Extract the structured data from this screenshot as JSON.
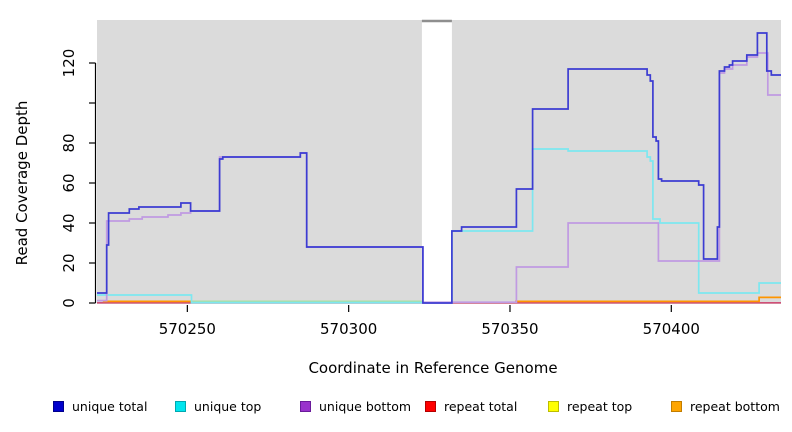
{
  "chart_data": {
    "type": "line",
    "subtype": "step-coverage",
    "title": "",
    "xlabel": "Coordinate in Reference Genome",
    "ylabel": "Read Coverage Depth",
    "xlim": [
      570222,
      570434
    ],
    "ylim": [
      0,
      141.5
    ],
    "grid": "off",
    "panel": {
      "background": "#dbdbdb",
      "gap_fill": "#ffffff",
      "gap_border": "#8f8f8f"
    },
    "gap_region": {
      "x_start": 570322.7,
      "x_end": 570332,
      "note": "white band, no coverage shown"
    },
    "x_ticks": [
      {
        "value": 570250,
        "label": "570250"
      },
      {
        "value": 570300,
        "label": "570300"
      },
      {
        "value": 570350,
        "label": "570350"
      },
      {
        "value": 570400,
        "label": "570400"
      }
    ],
    "y_ticks": [
      {
        "value": 0,
        "label": "0"
      },
      {
        "value": 20,
        "label": "20"
      },
      {
        "value": 40,
        "label": "40"
      },
      {
        "value": 60,
        "label": "60"
      },
      {
        "value": 80,
        "label": "80"
      },
      {
        "value": 100,
        "label": ""
      },
      {
        "value": 120,
        "label": "120"
      }
    ],
    "series": [
      {
        "name": "repeat total",
        "layer": "back",
        "legend_color": "#ff0000",
        "line_color": "#d04f77",
        "segments": [
          [
            [
              570222,
              0.1
            ],
            [
              570434,
              0.1
            ]
          ]
        ]
      },
      {
        "name": "repeat top",
        "layer": "back",
        "legend_color": "#ffff00",
        "line_color": "#a9dfa3",
        "segments": [
          [
            [
              570251.3,
              0.8
            ],
            [
              570322.7,
              0.8
            ]
          ]
        ]
      },
      {
        "name": "repeat bottom",
        "layer": "back",
        "legend_color": "#ffa500",
        "line_color": "#ff9500",
        "segments": [
          [
            [
              570223.8,
              0.8
            ],
            [
              570251.3,
              0.8
            ]
          ],
          [
            [
              570351.6,
              0.8
            ],
            [
              570427.2,
              2.8
            ],
            [
              570434,
              2.8
            ]
          ]
        ]
      },
      {
        "name": "unique top",
        "layer": "front",
        "legend_color": "#00e5ee",
        "line_color": "#7de7f0",
        "segments": [
          [
            [
              570222,
              4
            ],
            [
              570251.3,
              0.2
            ],
            [
              570332,
              36
            ],
            [
              570357,
              77
            ],
            [
              570368,
              76
            ],
            [
              570392.5,
              73
            ],
            [
              570393.5,
              71
            ],
            [
              570394.3,
              42
            ],
            [
              570396.5,
              40
            ],
            [
              570408.5,
              5
            ],
            [
              570427.2,
              10
            ],
            [
              570434,
              10
            ]
          ]
        ]
      },
      {
        "name": "unique bottom",
        "layer": "front",
        "legend_color": "#9932cc",
        "line_color": "#c09ae2",
        "segments": [
          [
            [
              570222,
              1.2
            ],
            [
              570225,
              41
            ],
            [
              570232,
              42
            ],
            [
              570236,
              43
            ],
            [
              570244,
              44
            ],
            [
              570248,
              45
            ],
            [
              570251,
              46
            ],
            [
              570260,
              73
            ],
            [
              570285,
              75
            ],
            [
              570287,
              28
            ],
            [
              570323,
              0.4
            ],
            [
              570352,
              18
            ],
            [
              570368,
              40
            ],
            [
              570396,
              21
            ],
            [
              570414.9,
              115
            ],
            [
              570416.5,
              117
            ],
            [
              570419,
              119
            ],
            [
              570423.4,
              123
            ],
            [
              570426.7,
              125
            ],
            [
              570429.9,
              104
            ],
            [
              570434,
              104
            ]
          ]
        ]
      },
      {
        "name": "unique total",
        "layer": "front",
        "legend_color": "#0000cc",
        "line_color": "#3c3cd2",
        "segments": [
          [
            [
              570222,
              5
            ],
            [
              570225,
              29
            ],
            [
              570225.6,
              45
            ],
            [
              570232,
              47
            ],
            [
              570235,
              48
            ],
            [
              570248,
              50
            ],
            [
              570251,
              46
            ],
            [
              570260,
              72
            ],
            [
              570261,
              73
            ],
            [
              570285,
              75
            ],
            [
              570287,
              28
            ],
            [
              570323,
              0
            ],
            [
              570332,
              36
            ],
            [
              570335,
              38
            ],
            [
              570352,
              57
            ],
            [
              570357,
              97
            ],
            [
              570368,
              117
            ],
            [
              570392.5,
              114
            ],
            [
              570393.5,
              111
            ],
            [
              570394.3,
              83
            ],
            [
              570395.3,
              81
            ],
            [
              570396,
              62
            ],
            [
              570397,
              61
            ],
            [
              570408.5,
              59
            ],
            [
              570410,
              22
            ],
            [
              570414.3,
              38
            ],
            [
              570414.9,
              116
            ],
            [
              570416.5,
              118
            ],
            [
              570418,
              119
            ],
            [
              570419,
              121
            ],
            [
              570423.4,
              124
            ],
            [
              570426.7,
              135
            ],
            [
              570429.6,
              116
            ],
            [
              570431,
              114
            ],
            [
              570434,
              114
            ]
          ]
        ]
      }
    ],
    "legend": {
      "position": "bottom",
      "items": [
        {
          "label": "unique total",
          "color": "#0000cc",
          "border": "#00008b"
        },
        {
          "label": "unique top",
          "color": "#00e5ee",
          "border": "#00a8b0"
        },
        {
          "label": "unique bottom",
          "color": "#9932cc",
          "border": "#6a1b9a"
        },
        {
          "label": "repeat total",
          "color": "#ff0000",
          "border": "#b30000"
        },
        {
          "label": "repeat top",
          "color": "#ffff00",
          "border": "#bdbd00"
        },
        {
          "label": "repeat bottom",
          "color": "#ffa500",
          "border": "#c27d00"
        }
      ]
    }
  }
}
